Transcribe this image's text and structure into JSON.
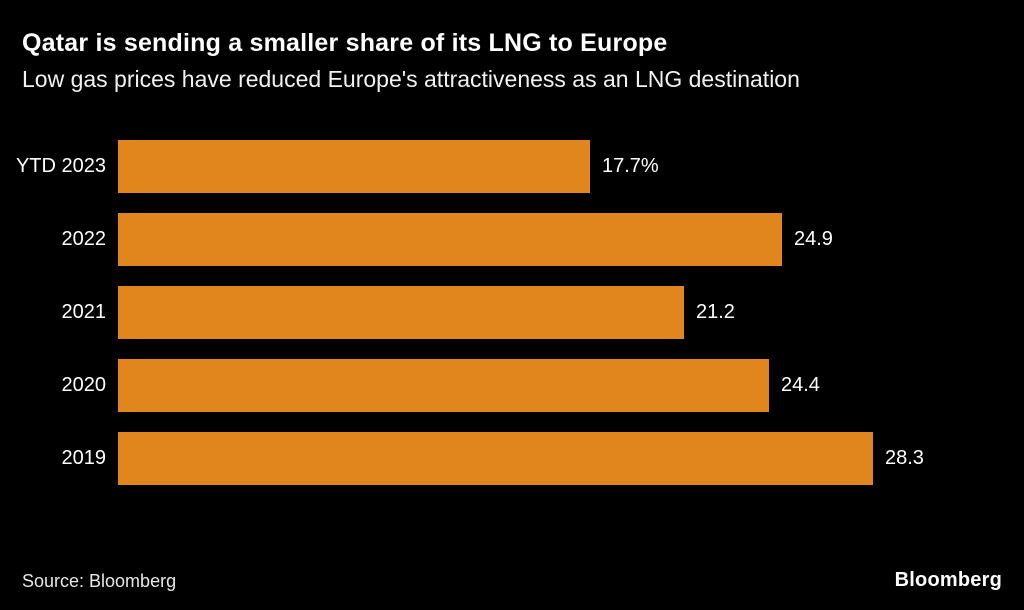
{
  "header": {
    "title": "Qatar is sending a smaller share of its LNG to Europe",
    "subtitle": "Low gas prices have reduced Europe's attractiveness as an LNG destination"
  },
  "chart_data": {
    "type": "bar",
    "orientation": "horizontal",
    "categories": [
      "YTD 2023",
      "2022",
      "2021",
      "2020",
      "2019"
    ],
    "values": [
      17.7,
      24.9,
      21.2,
      24.4,
      28.3
    ],
    "value_labels": [
      "17.7%",
      "24.9",
      "21.2",
      "24.4",
      "28.3"
    ],
    "title": "Qatar is sending a smaller share of its LNG to Europe",
    "subtitle": "Low gas prices have reduced Europe's attractiveness as an LNG destination",
    "xlabel": "",
    "ylabel": "",
    "xlim": [
      0,
      30
    ],
    "grid": false,
    "legend": "none",
    "bar_color": "#e0861c",
    "background_color": "#000000",
    "text_color": "#ffffff"
  },
  "footer": {
    "source": "Source: Bloomberg",
    "logo": "Bloomberg"
  }
}
